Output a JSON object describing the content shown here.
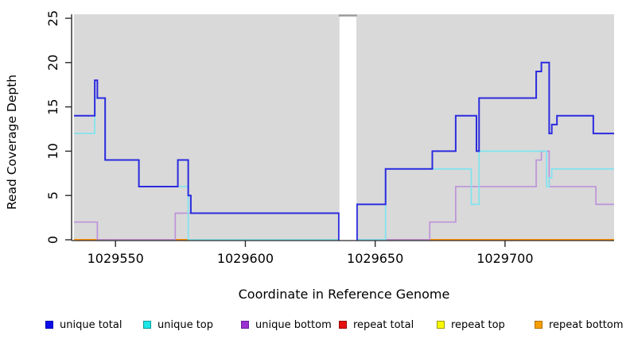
{
  "chart_data": {
    "type": "line",
    "subtype": "step-coverage",
    "title": "",
    "xlabel": "Coordinate in Reference Genome",
    "ylabel": "Read Coverage Depth",
    "xlim": [
      1029534,
      1029742
    ],
    "ylim": [
      0,
      25
    ],
    "xticks": [
      1029550,
      1029600,
      1029650,
      1029700
    ],
    "yticks": [
      0,
      5,
      10,
      15,
      20,
      25
    ],
    "grid": false,
    "plot_bg": "#d9d9d9",
    "gap": {
      "start": 1029636,
      "end": 1029643
    },
    "series": [
      {
        "name": "unique total",
        "color": "#2b2bdf",
        "width": 2,
        "steps": [
          [
            1029534,
            14
          ],
          [
            1029542,
            18
          ],
          [
            1029543,
            16
          ],
          [
            1029546,
            9
          ],
          [
            1029559,
            6
          ],
          [
            1029574,
            9
          ],
          [
            1029578,
            5
          ],
          [
            1029579,
            3
          ],
          [
            1029636,
            0
          ],
          [
            1029643,
            4
          ],
          [
            1029654,
            8
          ],
          [
            1029672,
            10
          ],
          [
            1029681,
            14
          ],
          [
            1029689,
            10
          ],
          [
            1029690,
            16
          ],
          [
            1029712,
            19
          ],
          [
            1029714,
            20
          ],
          [
            1029717,
            12
          ],
          [
            1029718,
            13
          ],
          [
            1029720,
            14
          ],
          [
            1029734,
            12
          ]
        ],
        "end": 1029742
      },
      {
        "name": "unique top",
        "color": "#7fe4ef",
        "width": 1.7,
        "steps": [
          [
            1029534,
            12
          ],
          [
            1029542,
            16
          ],
          [
            1029546,
            9
          ],
          [
            1029559,
            6
          ],
          [
            1029578,
            0
          ],
          [
            1029643,
            0
          ],
          [
            1029654,
            8
          ],
          [
            1029687,
            4
          ],
          [
            1029690,
            10
          ],
          [
            1029716,
            6
          ],
          [
            1029717,
            7
          ],
          [
            1029718,
            8
          ]
        ],
        "end": 1029742
      },
      {
        "name": "unique bottom",
        "color": "#bd93d9",
        "width": 1.7,
        "steps": [
          [
            1029534,
            2
          ],
          [
            1029543,
            0
          ],
          [
            1029573,
            3
          ],
          [
            1029636,
            0
          ],
          [
            1029643,
            0
          ],
          [
            1029671,
            2
          ],
          [
            1029681,
            6
          ],
          [
            1029712,
            9
          ],
          [
            1029714,
            10
          ],
          [
            1029717,
            6
          ],
          [
            1029735,
            4
          ]
        ],
        "end": 1029742
      },
      {
        "name": "repeat total",
        "color": "#cc5577",
        "width": 1.3,
        "steps": [
          [
            1029534,
            0
          ]
        ],
        "end": 1029742
      },
      {
        "name": "repeat top",
        "color": "#eded2a",
        "width": 1.3,
        "steps": [
          [
            1029534,
            0
          ]
        ],
        "end": 1029742
      },
      {
        "name": "repeat bottom",
        "color": "#ff9100",
        "width": 1.7,
        "steps": [
          [
            1029534,
            0
          ]
        ],
        "end": 1029742
      }
    ],
    "baseline_visible_segments": [
      {
        "color": "#ff9100",
        "from": 1029534,
        "to": 1029543
      },
      {
        "color": "#cc5577",
        "from": 1029543,
        "to": 1029573
      },
      {
        "color": "#ff9100",
        "from": 1029573,
        "to": 1029578
      },
      {
        "color": "#8ccf8c",
        "from": 1029578,
        "to": 1029636
      },
      {
        "color": "#cc5577",
        "from": 1029643,
        "to": 1029671
      },
      {
        "color": "#ff9100",
        "from": 1029671,
        "to": 1029742
      }
    ],
    "legend": [
      {
        "label": "unique total",
        "color": "#0b0bea",
        "border": "#0000b0"
      },
      {
        "label": "unique top",
        "color": "#1ce6e6",
        "border": "#0a9a9a"
      },
      {
        "label": "unique bottom",
        "color": "#9b2fd0",
        "border": "#691f9e"
      },
      {
        "label": "repeat total",
        "color": "#e61010",
        "border": "#990808"
      },
      {
        "label": "repeat top",
        "color": "#f8f800",
        "border": "#9a9a00"
      },
      {
        "label": "repeat bottom",
        "color": "#f59e00",
        "border": "#b07000"
      }
    ],
    "legend_position": "bottom"
  }
}
